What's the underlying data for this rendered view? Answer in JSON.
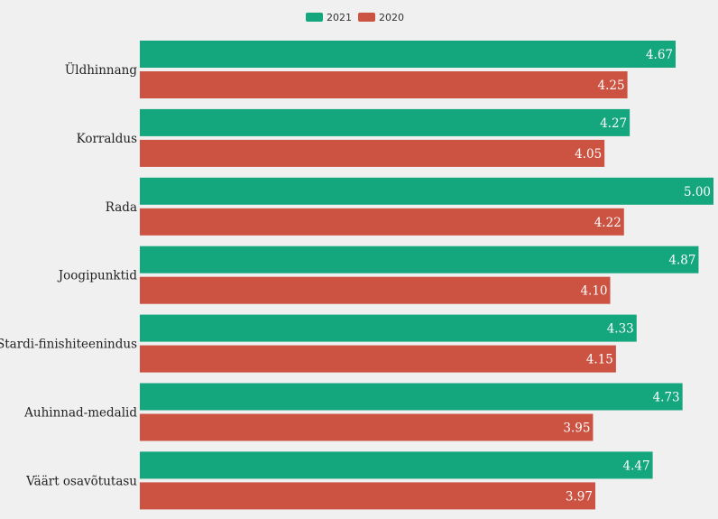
{
  "colors": {
    "series_2021": "#14a67c",
    "series_2020": "#cc5241",
    "background": "#f0f0f0"
  },
  "legend": {
    "position": "top-center"
  },
  "chart_data": {
    "type": "bar",
    "orientation": "horizontal",
    "title": "",
    "xlabel": "",
    "ylabel": "",
    "xlim": [
      0,
      5
    ],
    "grid": false,
    "categories": [
      "Üldhinnang",
      "Korraldus",
      "Rada",
      "Joogipunktid",
      "Stardi-finishiteenindus",
      "Auhinnad-medalid",
      "Väärt osavõtutasu"
    ],
    "series": [
      {
        "name": "2021",
        "color": "#14a67c",
        "values": [
          4.67,
          4.27,
          5.0,
          4.87,
          4.33,
          4.73,
          4.47
        ],
        "labels": [
          "4.67",
          "4.27",
          "5.00",
          "4.87",
          "4.33",
          "4.73",
          "4.47"
        ]
      },
      {
        "name": "2020",
        "color": "#cc5241",
        "values": [
          4.25,
          4.05,
          4.22,
          4.1,
          4.15,
          3.95,
          3.97
        ],
        "labels": [
          "4.25",
          "4.05",
          "4.22",
          "4.10",
          "4.15",
          "3.95",
          "3.97"
        ]
      }
    ]
  }
}
